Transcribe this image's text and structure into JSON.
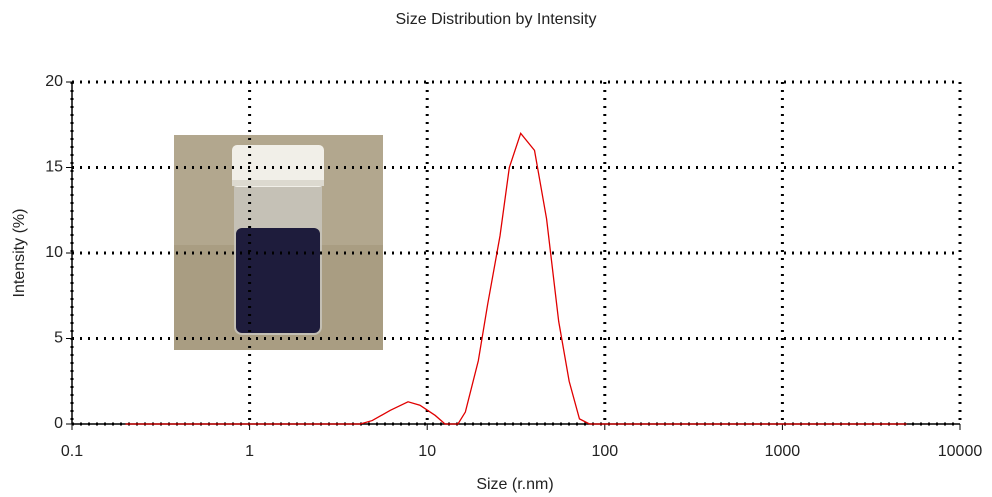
{
  "chart_data": {
    "type": "line",
    "title": "Size Distribution by Intensity",
    "x_label": "Size (r.nm)",
    "y_label": "Intensity (%)",
    "x_scale": "log",
    "grid": true,
    "xlim": [
      0.1,
      10000
    ],
    "xticks": [
      0.1,
      1,
      10,
      100,
      1000,
      10000
    ],
    "ylim": [
      0,
      20
    ],
    "yticks": [
      0,
      5,
      10,
      15,
      20
    ],
    "x": [
      0.2,
      4.2,
      4.9,
      6.2,
      7.8,
      9.1,
      11.1,
      12.6,
      14.9,
      16.4,
      19.4,
      21.9,
      25.7,
      29,
      33.6,
      40.2,
      47,
      55,
      63,
      72,
      82,
      5000
    ],
    "series": [
      {
        "color": "#e00000",
        "values": [
          0,
          0,
          0.2,
          0.8,
          1.3,
          1.1,
          0.5,
          0,
          0,
          0.7,
          3.7,
          7,
          11,
          15,
          17,
          16,
          12,
          6,
          2.5,
          0.3,
          0,
          0
        ]
      }
    ]
  }
}
